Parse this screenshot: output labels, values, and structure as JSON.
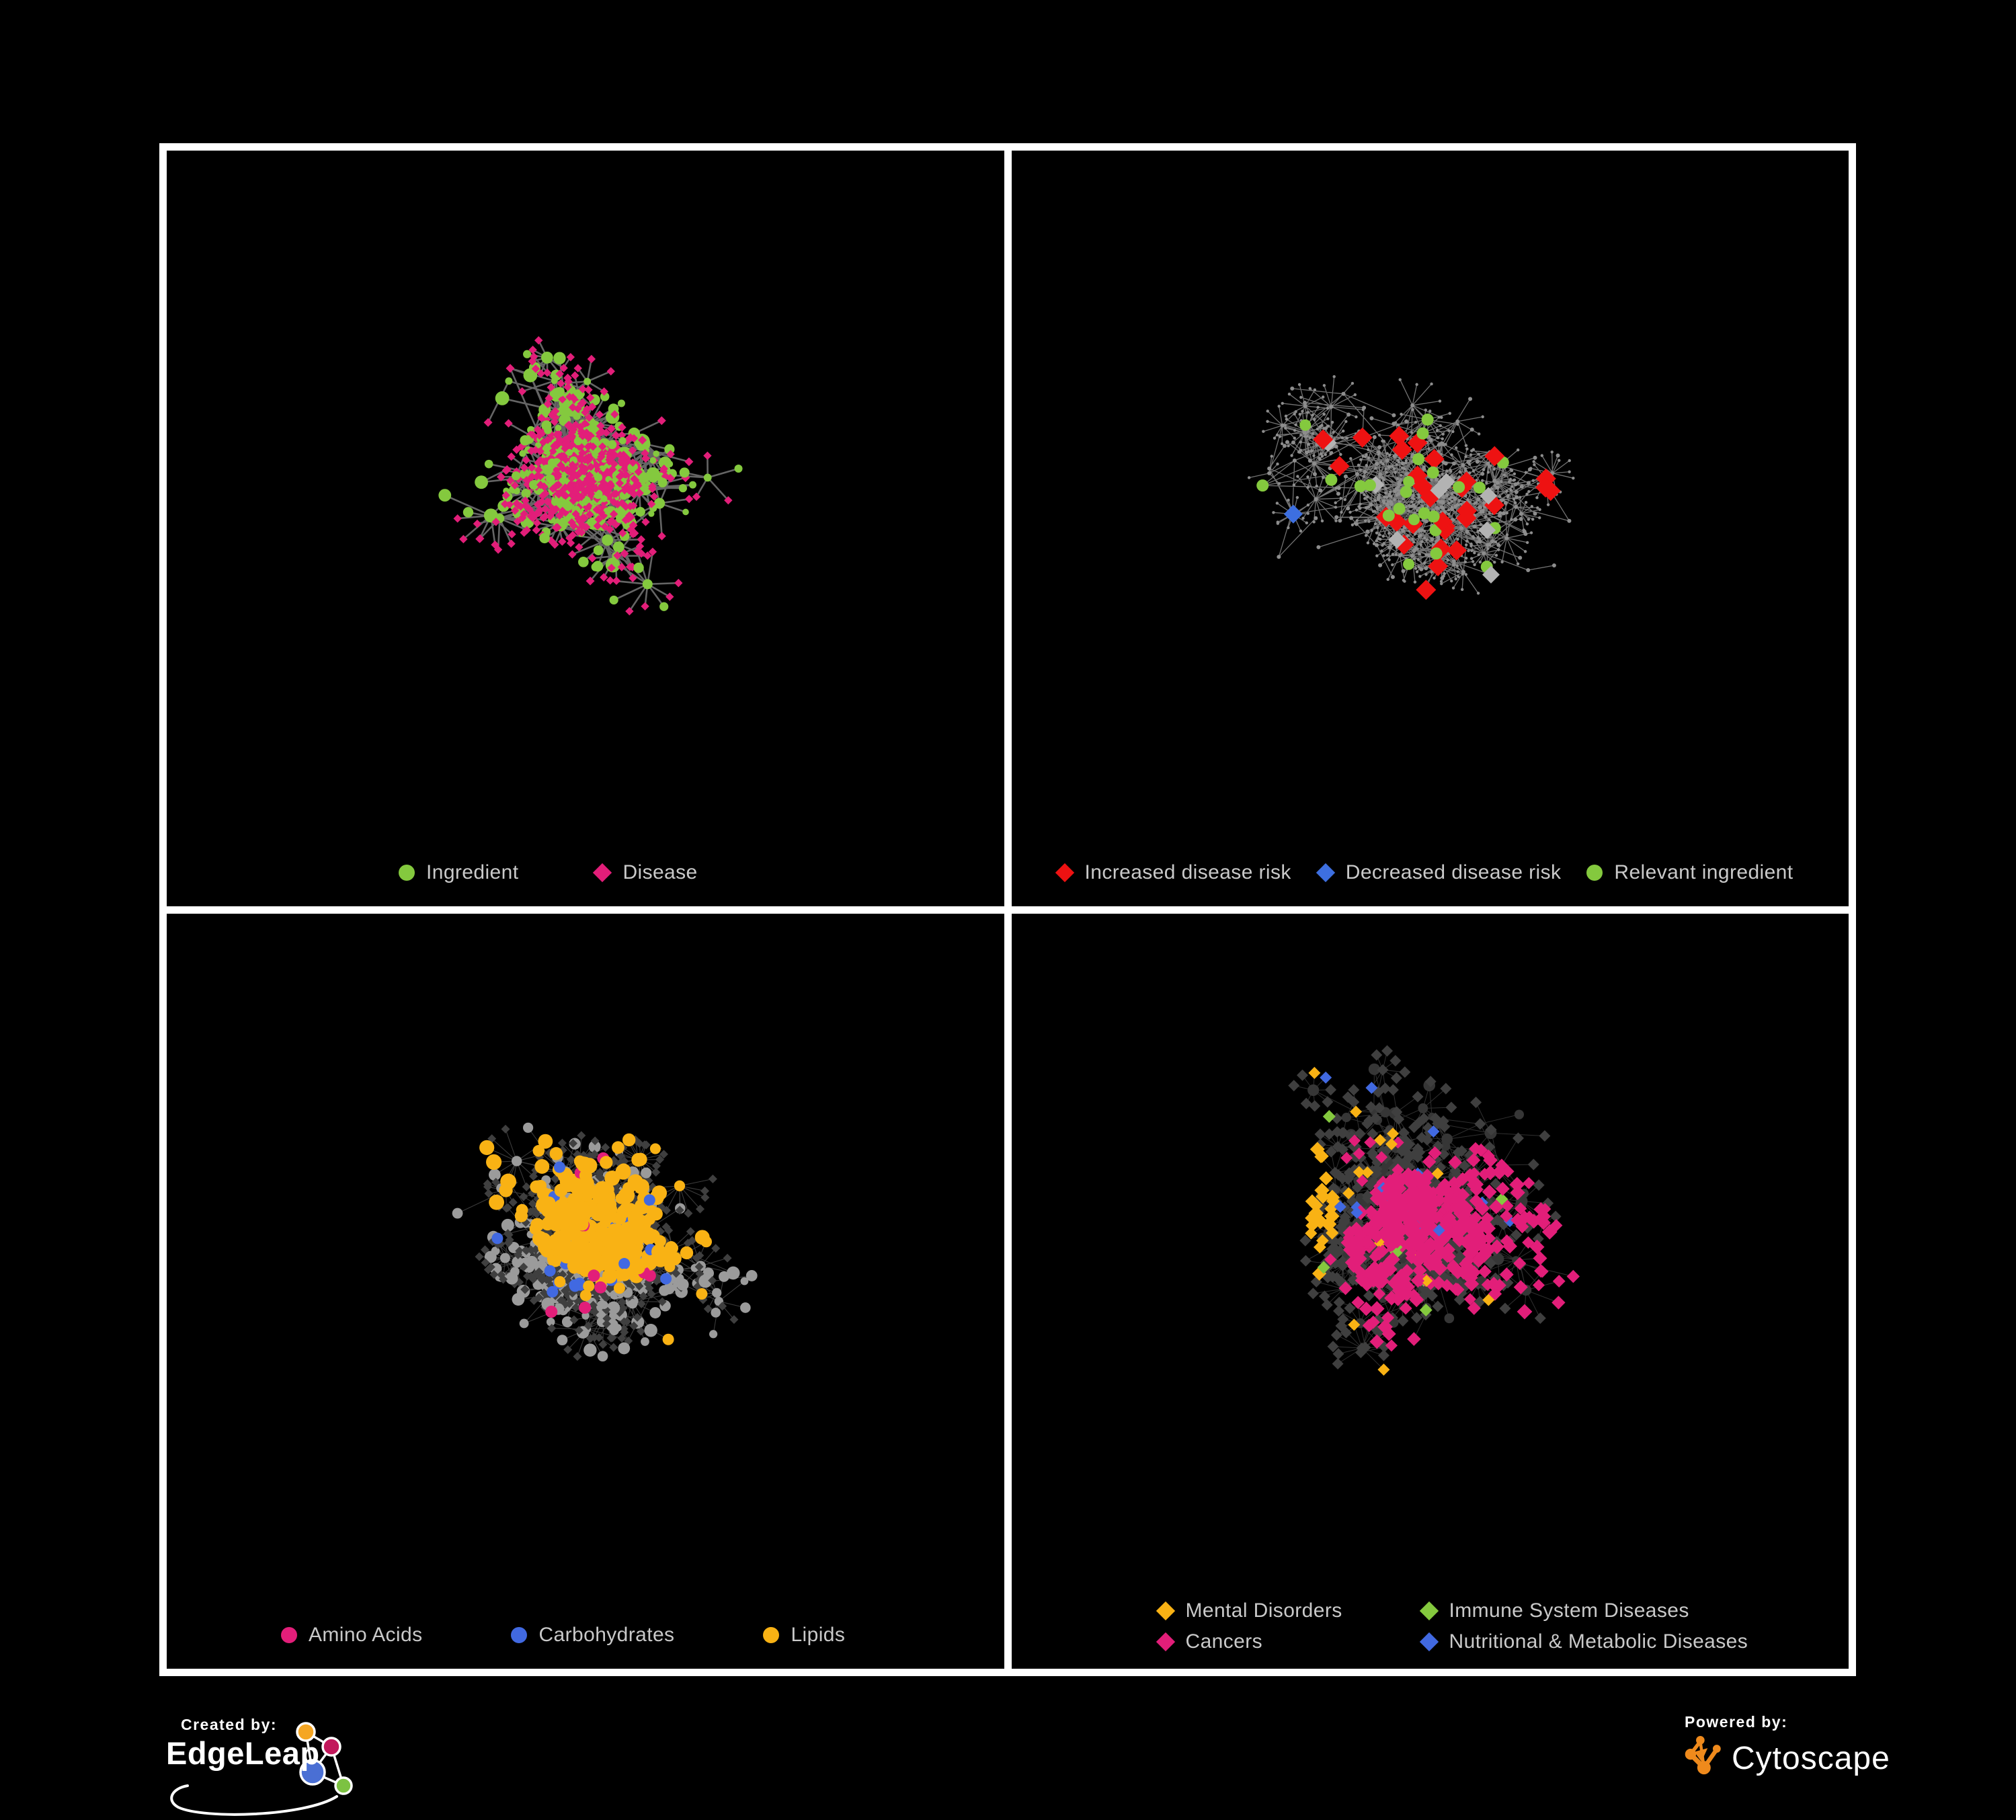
{
  "figure": {
    "panels": [
      {
        "id": "ingredients-diseases",
        "legend": [
          {
            "label": "Ingredient",
            "shape": "circle",
            "color": "#84c93e"
          },
          {
            "label": "Disease",
            "shape": "diamond",
            "color": "#e21e79"
          }
        ],
        "network": {
          "seed": 9,
          "trunk": 250,
          "bias": 2.6,
          "step": 56,
          "cross": 26,
          "burst_prob": 0.32,
          "burst_min": 4,
          "burst_var": 11,
          "leaf_r": 34,
          "edge_color": "#6a6a6a",
          "edge_width": 2.6,
          "edge_opacity": 0.95,
          "area_bottom": 990,
          "cy_off": -20
        }
      },
      {
        "id": "disease-risk",
        "legend": [
          {
            "label": "Increased disease risk",
            "shape": "diamond",
            "color": "#ee1212"
          },
          {
            "label": "Decreased disease risk",
            "shape": "diamond",
            "color": "#3d6fe0"
          },
          {
            "label": "Relevant ingredient",
            "shape": "circle",
            "color": "#84c93e"
          }
        ],
        "network": {
          "seed": 17,
          "trunk": 320,
          "bias": 1.9,
          "step": 60,
          "cross": 22,
          "burst_prob": 0.3,
          "burst_min": 4,
          "burst_var": 9,
          "leaf_r": 30,
          "edge_color": "#8f8f8f",
          "edge_width": 1.3,
          "edge_opacity": 0.8,
          "area_bottom": 990,
          "cy_off": -10
        }
      },
      {
        "id": "ingredient-classes",
        "legend": [
          {
            "label": "Amino Acids",
            "shape": "circle",
            "color": "#e21e79"
          },
          {
            "label": "Carbohydrates",
            "shape": "circle",
            "color": "#4169e1"
          },
          {
            "label": "Lipids",
            "shape": "circle",
            "color": "#f9b214"
          }
        ],
        "network": {
          "seed": 23,
          "trunk": 300,
          "bias": 2.3,
          "step": 58,
          "cross": 26,
          "burst_prob": 0.31,
          "burst_min": 4,
          "burst_var": 11,
          "leaf_r": 32,
          "edge_color": "#a8a8a8",
          "edge_width": 1.1,
          "edge_opacity": 0.35,
          "area_bottom": 985,
          "cy_off": -15
        }
      },
      {
        "id": "disease-classes",
        "legend": [
          {
            "label": "Mental Disorders",
            "shape": "diamond",
            "color": "#f9b214"
          },
          {
            "label": "Immune System Diseases",
            "shape": "diamond",
            "color": "#84c93e"
          },
          {
            "label": "Cancers",
            "shape": "diamond",
            "color": "#e21e79"
          },
          {
            "label": "Nutritional & Metabolic Diseases",
            "shape": "diamond",
            "color": "#4169e1"
          }
        ],
        "network": {
          "seed": 31,
          "trunk": 340,
          "bias": 2.1,
          "step": 56,
          "cross": 30,
          "burst_prob": 0.3,
          "burst_min": 4,
          "burst_var": 10,
          "leaf_r": 30,
          "edge_color": "#b0b0b0",
          "edge_width": 1.0,
          "edge_opacity": 0.27,
          "area_bottom": 960,
          "cy_off": -25
        }
      }
    ]
  },
  "footer": {
    "created_by": "Created by:",
    "brand": "EdgeLeap",
    "powered_by": "Powered by:",
    "engine": "Cytoscape"
  },
  "colors": {
    "background": "#000000",
    "panel_border": "#ffffff",
    "legend_text": "#c9c9c9",
    "green": "#84c93e",
    "pink": "#e21e79",
    "red": "#ee1212",
    "blue": "#3d6fe0",
    "royal_blue": "#4169e1",
    "amber": "#f9b214",
    "gray_node": "#9b9b9b",
    "gray_diamond": "#b3b3b3",
    "tiny_dot": "#8d8d8d",
    "dark_diamond": "#3f3f3f",
    "dark_circle": "#363636",
    "cytoscape_orange": "#ef8a1c",
    "logo_orange": "#f5a623",
    "logo_magenta": "#c2185b",
    "logo_blue": "#4a6fd4",
    "logo_green": "#7cc242"
  }
}
